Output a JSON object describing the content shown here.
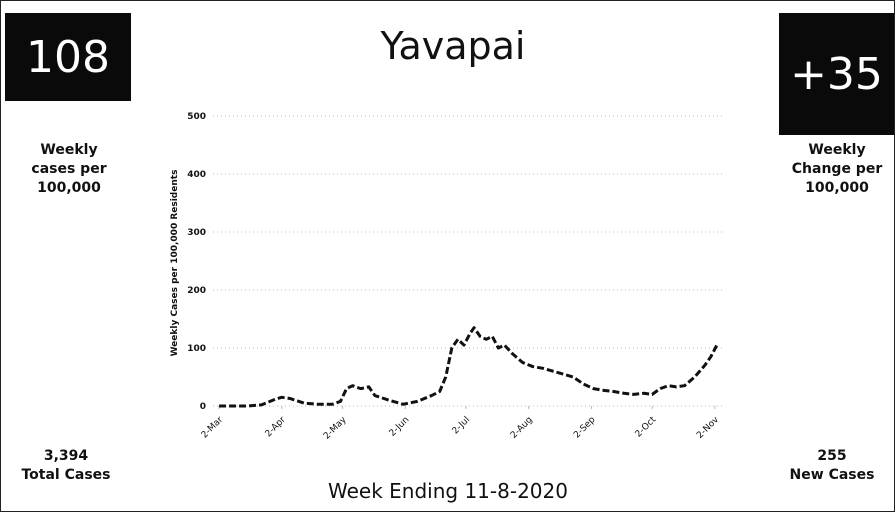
{
  "chart_data": {
    "type": "line",
    "title": "Yavapai",
    "ylabel": "Weekly Cases per 100,000 Residents",
    "xlim": [
      -3,
      250
    ],
    "ylim": [
      0,
      500
    ],
    "yticks": [
      0,
      100,
      200,
      300,
      400,
      500
    ],
    "grid": true,
    "xticks": [
      {
        "value": 0,
        "label": "2-Mar"
      },
      {
        "value": 31,
        "label": "2-Apr"
      },
      {
        "value": 61,
        "label": "2-May"
      },
      {
        "value": 92,
        "label": "2-Jun"
      },
      {
        "value": 122,
        "label": "2-Jul"
      },
      {
        "value": 153,
        "label": "2-Aug"
      },
      {
        "value": 184,
        "label": "2-Sep"
      },
      {
        "value": 214,
        "label": "2-Oct"
      },
      {
        "value": 245,
        "label": "2-Nov"
      }
    ],
    "series": [
      {
        "color": "#111111",
        "x": [
          0,
          7,
          14,
          21,
          28,
          31,
          35,
          42,
          49,
          56,
          60,
          63,
          66,
          70,
          74,
          77,
          84,
          91,
          98,
          105,
          109,
          112,
          115,
          118,
          121,
          124,
          126,
          129,
          132,
          135,
          138,
          141,
          145,
          150,
          155,
          160,
          165,
          170,
          175,
          180,
          185,
          190,
          195,
          200,
          205,
          210,
          214,
          218,
          222,
          226,
          230,
          235,
          240,
          243,
          246
        ],
        "values": [
          0,
          0,
          0,
          2,
          12,
          15,
          13,
          5,
          3,
          3,
          8,
          30,
          35,
          30,
          33,
          18,
          10,
          3,
          8,
          18,
          25,
          50,
          100,
          115,
          105,
          125,
          135,
          120,
          115,
          120,
          100,
          105,
          90,
          75,
          68,
          65,
          60,
          55,
          50,
          38,
          30,
          27,
          25,
          22,
          20,
          22,
          20,
          30,
          35,
          33,
          35,
          50,
          70,
          85,
          105
        ]
      }
    ]
  },
  "footer": "Week Ending 11-8-2020",
  "left_panel": {
    "value": "108",
    "label": "Weekly cases per 100,000",
    "total": "3,394",
    "total_label": "Total Cases"
  },
  "right_panel": {
    "value": "+35",
    "label": "Weekly Change per 100,000",
    "total": "255",
    "total_label": "New Cases"
  }
}
